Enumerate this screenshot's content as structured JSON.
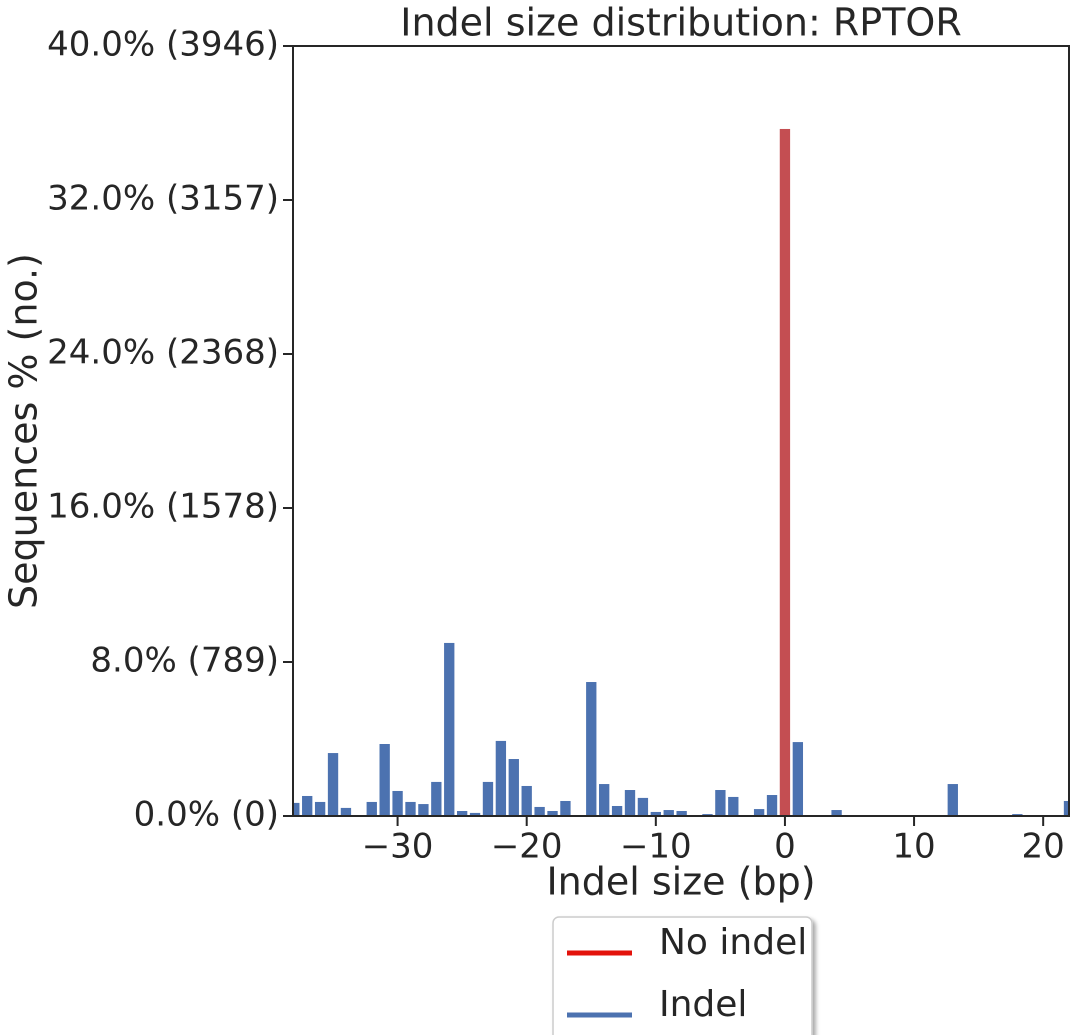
{
  "chart_data": {
    "type": "bar",
    "title": "Indel size distribution: RPTOR",
    "xlabel": "Indel size (bp)",
    "ylabel": "Sequences % (no.)",
    "series": [
      {
        "name": "No indel",
        "color": "#c44e52",
        "legend_color": "#e3120b",
        "x": [
          0
        ],
        "values": [
          35.69
        ]
      },
      {
        "name": "Indel",
        "color": "#4c72b0",
        "legend_color": "#4c72b0",
        "x": [
          -38,
          -37,
          -36,
          -35,
          -34,
          -32,
          -31,
          -30,
          -29,
          -28,
          -27,
          -26,
          -25,
          -24,
          -23,
          -22,
          -21,
          -20,
          -19,
          -18,
          -17,
          -15,
          -14,
          -13,
          -12,
          -11,
          -10,
          -9,
          -8,
          -6,
          -5,
          -4,
          -2,
          -1,
          1,
          4,
          13,
          18,
          22
        ],
        "values": [
          0.68,
          1.04,
          0.73,
          3.27,
          0.42,
          0.73,
          3.74,
          1.3,
          0.73,
          0.62,
          1.77,
          8.99,
          0.26,
          0.16,
          1.77,
          3.9,
          2.96,
          1.56,
          0.47,
          0.26,
          0.78,
          6.96,
          1.66,
          0.52,
          1.35,
          0.94,
          0.21,
          0.31,
          0.26,
          0.1,
          1.35,
          0.99,
          0.36,
          1.09,
          3.84,
          0.31,
          1.66,
          0.1,
          0.78
        ]
      }
    ],
    "bar_width": 0.8,
    "xlim": [
      -38.1,
      22
    ],
    "xticks": [
      {
        "value": -30,
        "label": "−30"
      },
      {
        "value": -20,
        "label": "−20"
      },
      {
        "value": -10,
        "label": "−10"
      },
      0,
      10,
      20
    ],
    "ylim": [
      0,
      40
    ],
    "yticks": [
      {
        "value": 0,
        "label": "0.0% (0)"
      },
      {
        "value": 8,
        "label": "8.0% (789)"
      },
      {
        "value": 16,
        "label": "16.0% (1578)"
      },
      {
        "value": 24,
        "label": "24.0% (2368)"
      },
      {
        "value": 32,
        "label": "32.0% (3157)"
      },
      {
        "value": 40,
        "label": "40.0% (3946)"
      }
    ],
    "legend": "bottom"
  }
}
